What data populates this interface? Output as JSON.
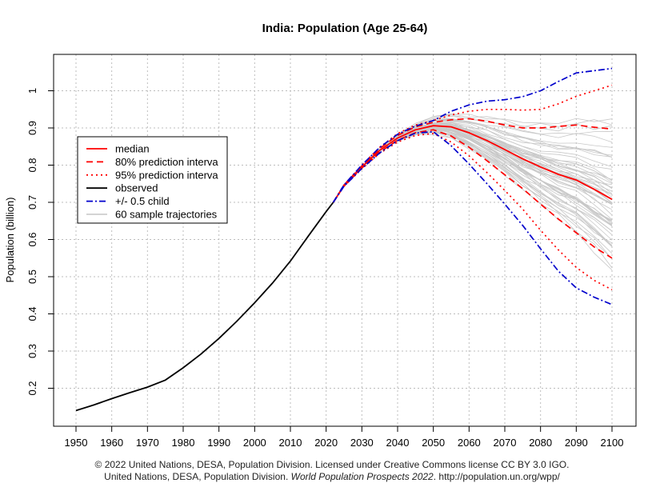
{
  "chart_data": {
    "type": "line",
    "title": "India: Population (Age 25-64)",
    "xlabel": "",
    "ylabel": "Population (billion)",
    "xlim": [
      1950,
      2100
    ],
    "ylim": [
      0.1,
      1.1
    ],
    "grid": true,
    "legend_position": "left",
    "x_ticks": [
      "1950",
      "1960",
      "1970",
      "1980",
      "1990",
      "2000",
      "2010",
      "2020",
      "2030",
      "2040",
      "2050",
      "2060",
      "2070",
      "2080",
      "2090",
      "2100"
    ],
    "y_ticks": [
      "0.2",
      "0.3",
      "0.4",
      "0.5",
      "0.6",
      "0.7",
      "0.8",
      "0.9",
      "1"
    ],
    "legend": [
      {
        "label": "median",
        "color": "#ff0000",
        "style": "solid"
      },
      {
        "label": "80% prediction interva",
        "color": "#ff0000",
        "style": "dashed"
      },
      {
        "label": "95% prediction interva",
        "color": "#ff0000",
        "style": "dotted"
      },
      {
        "label": "observed",
        "color": "#000000",
        "style": "solid"
      },
      {
        "label": "+/- 0.5 child",
        "color": "#0000cc",
        "style": "dashdot"
      },
      {
        "label": "60 sample trajectories",
        "color": "#bbbbbb",
        "style": "solid"
      }
    ],
    "series": [
      {
        "name": "observed",
        "color": "#000000",
        "dash": "",
        "x": [
          1950,
          1955,
          1960,
          1965,
          1970,
          1975,
          1980,
          1985,
          1990,
          1995,
          2000,
          2005,
          2010,
          2015,
          2020,
          2022
        ],
        "y": [
          0.14,
          0.155,
          0.172,
          0.188,
          0.203,
          0.222,
          0.255,
          0.292,
          0.334,
          0.38,
          0.43,
          0.483,
          0.542,
          0.609,
          0.675,
          0.7
        ]
      },
      {
        "name": "median",
        "color": "#ff0000",
        "dash": "",
        "x": [
          2022,
          2025,
          2030,
          2035,
          2040,
          2045,
          2050,
          2055,
          2060,
          2065,
          2070,
          2075,
          2080,
          2085,
          2090,
          2095,
          2100
        ],
        "y": [
          0.7,
          0.745,
          0.795,
          0.84,
          0.873,
          0.895,
          0.906,
          0.903,
          0.887,
          0.866,
          0.842,
          0.817,
          0.795,
          0.775,
          0.76,
          0.735,
          0.708
        ]
      },
      {
        "name": "80% prediction interva upper",
        "color": "#ff0000",
        "dash": "8,5",
        "x": [
          2022,
          2025,
          2030,
          2035,
          2040,
          2045,
          2050,
          2055,
          2060,
          2065,
          2070,
          2075,
          2080,
          2085,
          2090,
          2095,
          2100
        ],
        "y": [
          0.7,
          0.746,
          0.798,
          0.845,
          0.88,
          0.903,
          0.915,
          0.922,
          0.925,
          0.918,
          0.908,
          0.9,
          0.9,
          0.904,
          0.908,
          0.902,
          0.897
        ]
      },
      {
        "name": "80% prediction interva lower",
        "color": "#ff0000",
        "dash": "8,5",
        "x": [
          2022,
          2025,
          2030,
          2035,
          2040,
          2045,
          2050,
          2055,
          2060,
          2065,
          2070,
          2075,
          2080,
          2085,
          2090,
          2095,
          2100
        ],
        "y": [
          0.7,
          0.744,
          0.792,
          0.835,
          0.867,
          0.887,
          0.895,
          0.878,
          0.848,
          0.812,
          0.774,
          0.737,
          0.695,
          0.655,
          0.618,
          0.58,
          0.55
        ]
      },
      {
        "name": "95% prediction interva upper",
        "color": "#ff0000",
        "dash": "2,4",
        "x": [
          2022,
          2025,
          2030,
          2035,
          2040,
          2045,
          2050,
          2055,
          2060,
          2065,
          2070,
          2075,
          2080,
          2085,
          2090,
          2095,
          2100
        ],
        "y": [
          0.7,
          0.747,
          0.8,
          0.848,
          0.885,
          0.908,
          0.92,
          0.935,
          0.945,
          0.95,
          0.95,
          0.948,
          0.95,
          0.965,
          0.985,
          1.0,
          1.015
        ]
      },
      {
        "name": "95% prediction interva lower",
        "color": "#ff0000",
        "dash": "2,4",
        "x": [
          2022,
          2025,
          2030,
          2035,
          2040,
          2045,
          2050,
          2055,
          2060,
          2065,
          2070,
          2075,
          2080,
          2085,
          2090,
          2095,
          2100
        ],
        "y": [
          0.7,
          0.743,
          0.79,
          0.832,
          0.862,
          0.88,
          0.885,
          0.862,
          0.825,
          0.78,
          0.732,
          0.682,
          0.625,
          0.572,
          0.525,
          0.49,
          0.465
        ]
      },
      {
        "name": "+/- 0.5 child upper",
        "color": "#0000cc",
        "dash": "8,3,2,3",
        "x": [
          2022,
          2025,
          2030,
          2035,
          2040,
          2045,
          2050,
          2055,
          2060,
          2065,
          2070,
          2075,
          2080,
          2085,
          2090,
          2095,
          2100
        ],
        "y": [
          0.7,
          0.747,
          0.8,
          0.848,
          0.883,
          0.905,
          0.92,
          0.945,
          0.962,
          0.972,
          0.976,
          0.984,
          1.0,
          1.025,
          1.048,
          1.054,
          1.06
        ]
      },
      {
        "name": "+/- 0.5 child lower",
        "color": "#0000cc",
        "dash": "8,3,2,3",
        "x": [
          2022,
          2025,
          2030,
          2035,
          2040,
          2045,
          2050,
          2055,
          2060,
          2065,
          2070,
          2075,
          2080,
          2085,
          2090,
          2095,
          2100
        ],
        "y": [
          0.7,
          0.743,
          0.791,
          0.833,
          0.866,
          0.886,
          0.89,
          0.852,
          0.803,
          0.75,
          0.695,
          0.638,
          0.575,
          0.515,
          0.47,
          0.445,
          0.425
        ]
      }
    ]
  },
  "caption": {
    "line1": "© 2022 United Nations, DESA, Population Division. Licensed under Creative Commons license CC BY 3.0 IGO.",
    "line2_prefix": "United Nations, DESA, Population Division.",
    "line2_italic": "World Population Prospects 2022",
    "line2_suffix": ". http://population.un.org/wpp/"
  }
}
